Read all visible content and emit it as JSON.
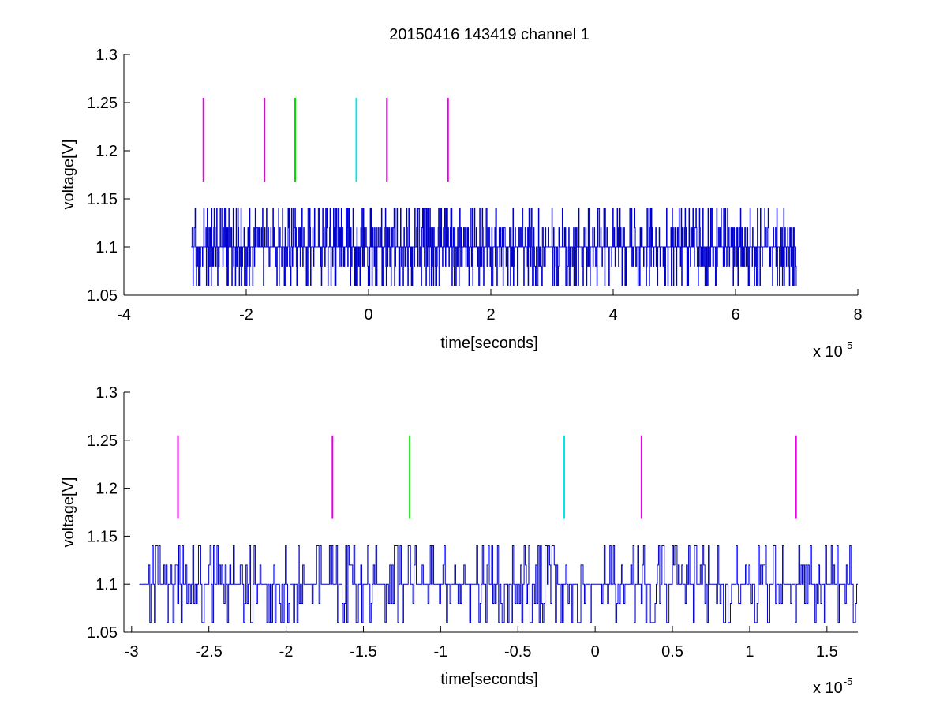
{
  "chart_data": [
    {
      "type": "line",
      "title": "20150416 143419 channel 1",
      "xlabel": "time[seconds]",
      "ylabel": "voltage[V]",
      "x_multiplier": "x 10",
      "x_exponent": "-5",
      "xlim": [
        -4,
        8
      ],
      "ylim": [
        1.05,
        1.3
      ],
      "xticks": [
        -4,
        -2,
        0,
        2,
        4,
        6,
        8
      ],
      "xtick_labels": [
        "-4",
        "-2",
        "0",
        "2",
        "4",
        "6",
        "8"
      ],
      "yticks": [
        1.05,
        1.1,
        1.15,
        1.2,
        1.25,
        1.3
      ],
      "ytick_labels": [
        "1.05",
        "1.1",
        "1.15",
        "1.2",
        "1.25",
        "1.3"
      ],
      "grid": false,
      "signal": {
        "x_start": -2.9,
        "x_end": 7.0,
        "levels": [
          1.06,
          1.08,
          1.1,
          1.12,
          1.14
        ],
        "base": 1.1,
        "color": "#0000cc"
      },
      "markers": [
        {
          "x": -2.7,
          "color": "#e600e6",
          "ymin": 1.168,
          "ymax": 1.255
        },
        {
          "x": -1.7,
          "color": "#e600e6",
          "ymin": 1.168,
          "ymax": 1.255
        },
        {
          "x": -1.2,
          "color": "#00dd00",
          "ymin": 1.168,
          "ymax": 1.255
        },
        {
          "x": -0.2,
          "color": "#00e5e5",
          "ymin": 1.168,
          "ymax": 1.255
        },
        {
          "x": 0.3,
          "color": "#e600e6",
          "ymin": 1.168,
          "ymax": 1.255
        },
        {
          "x": 1.3,
          "color": "#e600e6",
          "ymin": 1.168,
          "ymax": 1.255
        }
      ]
    },
    {
      "type": "line",
      "title": "",
      "xlabel": "time[seconds]",
      "ylabel": "voltage[V]",
      "x_multiplier": "x 10",
      "x_exponent": "-5",
      "xlim": [
        -3.05,
        1.7
      ],
      "ylim": [
        1.05,
        1.3
      ],
      "xticks": [
        -3,
        -2.5,
        -2,
        -1.5,
        -1,
        -0.5,
        0,
        0.5,
        1,
        1.5
      ],
      "xtick_labels": [
        "-3",
        "-2.5",
        "-2",
        "-1.5",
        "-1",
        "-0.5",
        "0",
        "0.5",
        "1",
        "1.5"
      ],
      "yticks": [
        1.05,
        1.1,
        1.15,
        1.2,
        1.25,
        1.3
      ],
      "ytick_labels": [
        "1.05",
        "1.1",
        "1.15",
        "1.2",
        "1.25",
        "1.3"
      ],
      "grid": false,
      "signal": {
        "x_start": -2.95,
        "x_end": 1.7,
        "levels": [
          1.06,
          1.08,
          1.1,
          1.12,
          1.14
        ],
        "base": 1.1,
        "color": "#0000cc"
      },
      "markers": [
        {
          "x": -2.7,
          "color": "#e600e6",
          "ymin": 1.168,
          "ymax": 1.255
        },
        {
          "x": -1.7,
          "color": "#e600e6",
          "ymin": 1.168,
          "ymax": 1.255
        },
        {
          "x": -1.2,
          "color": "#00dd00",
          "ymin": 1.168,
          "ymax": 1.255
        },
        {
          "x": -0.2,
          "color": "#00e5e5",
          "ymin": 1.168,
          "ymax": 1.255
        },
        {
          "x": 0.3,
          "color": "#e600e6",
          "ymin": 1.168,
          "ymax": 1.255
        },
        {
          "x": 1.3,
          "color": "#e600e6",
          "ymin": 1.168,
          "ymax": 1.255
        }
      ]
    }
  ]
}
